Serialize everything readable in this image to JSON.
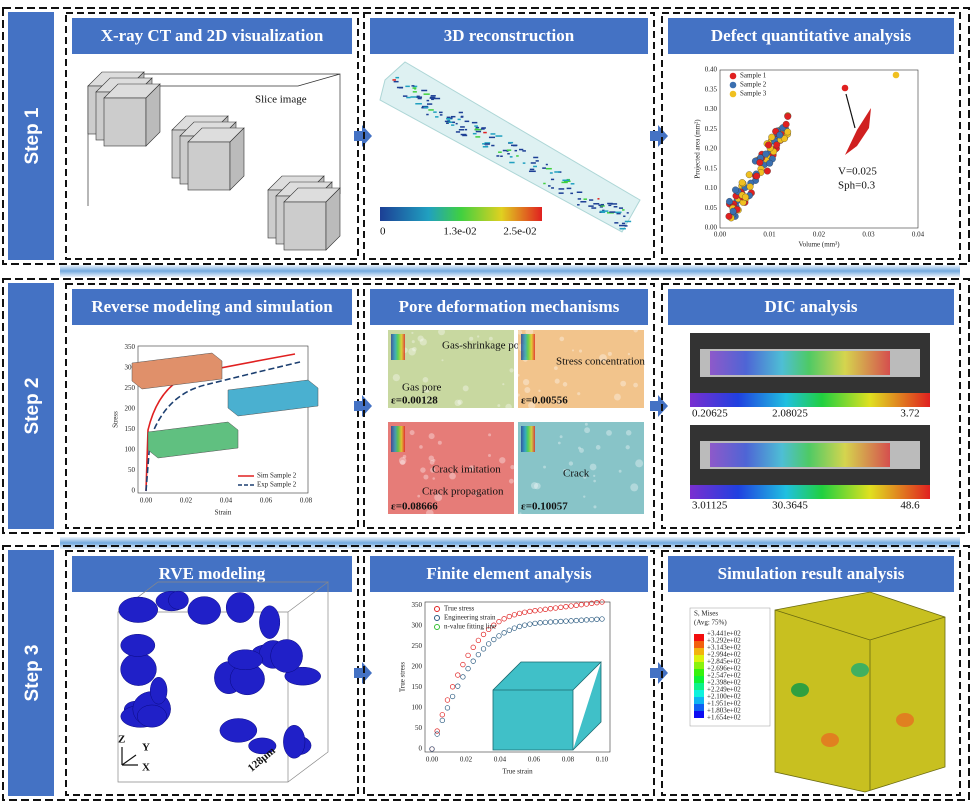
{
  "steps": [
    {
      "label": "Step 1",
      "panels": [
        {
          "title": "X-ray CT and 2D visualization",
          "caption": "Slice image"
        },
        {
          "title": "3D reconstruction",
          "colorbar": [
            "0",
            "1.3e-02",
            "2.5e-02"
          ]
        },
        {
          "title": "Defect quantitative analysis",
          "legend": [
            "Sample 1",
            "Sample 2",
            "Sample 3"
          ],
          "x_label": "Volume (mm³)",
          "y_label": "Projected area (mm²)",
          "xticks": [
            "0.00",
            "0.01",
            "0.02",
            "0.03",
            "0.04"
          ],
          "yticks": [
            "0.00",
            "0.05",
            "0.10",
            "0.15",
            "0.20",
            "0.25",
            "0.30",
            "0.35",
            "0.40"
          ],
          "annotations": [
            "V=0.025",
            "Sph=0.3"
          ]
        }
      ]
    },
    {
      "label": "Step 2",
      "panels": [
        {
          "title": "Reverse modeling and simulation",
          "x_label": "Strain",
          "y_label": "Stress",
          "xticks": [
            "0.00",
            "0.02",
            "0.04",
            "0.06",
            "0.08"
          ],
          "yticks": [
            "0",
            "50",
            "100",
            "150",
            "200",
            "250",
            "300",
            "350"
          ],
          "legend": [
            "Sim Sample 2",
            "Exp Sample 2"
          ]
        },
        {
          "title": "Pore deformation mechanisms",
          "tiles": [
            {
              "labels": [
                "Gas-shrinkage pore",
                "Gas pore"
              ],
              "strain": "ε=0.00128"
            },
            {
              "labels": [
                "Stress concentration"
              ],
              "strain": "ε=0.00556"
            },
            {
              "labels": [
                "Crack imitation",
                "Crack propagation"
              ],
              "strain": "ε=0.08666"
            },
            {
              "labels": [
                "Crack"
              ],
              "strain": "ε=0.10057"
            }
          ]
        },
        {
          "title": "DIC analysis",
          "colorbars": [
            [
              "0.20625",
              "2.08025",
              "3.72"
            ],
            [
              "3.01125",
              "30.3645",
              "48.6"
            ]
          ]
        }
      ]
    },
    {
      "label": "Step 3",
      "panels": [
        {
          "title": "RVE modeling",
          "axes": [
            "Z",
            "Y",
            "X"
          ],
          "size": "128μm"
        },
        {
          "title": "Finite element analysis",
          "legend": [
            "True stress",
            "Engineering strain",
            "n-value fitting line"
          ],
          "x_label": "True strain",
          "y_label": "True stress",
          "xticks": [
            "0.00",
            "0.02",
            "0.04",
            "0.06",
            "0.08",
            "0.10"
          ],
          "yticks": [
            "0",
            "50",
            "100",
            "150",
            "200",
            "250",
            "300",
            "350"
          ]
        },
        {
          "title": "Simulation result analysis",
          "legend_title": [
            "S, Mises",
            "(Avg: 75%)"
          ],
          "levels": [
            "+3.441e+02",
            "+3.292e+02",
            "+3.143e+02",
            "+2.994e+02",
            "+2.845e+02",
            "+2.696e+02",
            "+2.547e+02",
            "+2.398e+02",
            "+2.249e+02",
            "+2.100e+02",
            "+1.951e+02",
            "+1.803e+02",
            "+1.654e+02"
          ]
        }
      ]
    }
  ]
}
